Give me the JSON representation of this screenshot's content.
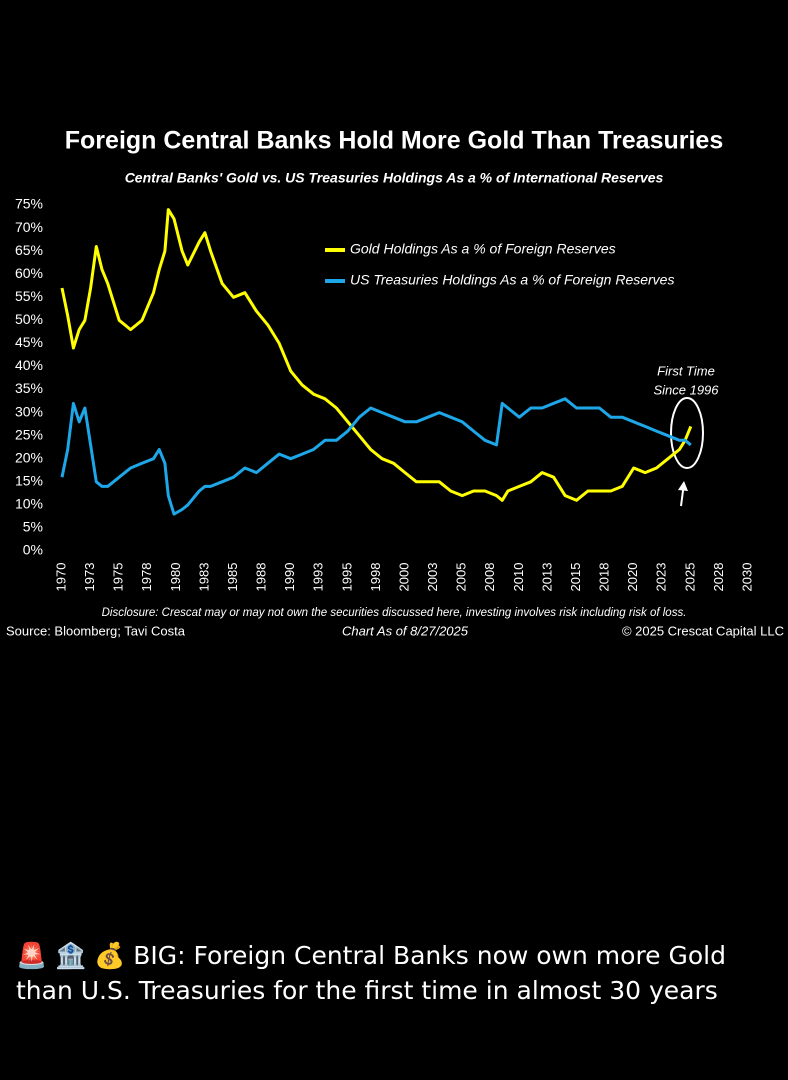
{
  "chart_data": {
    "type": "line",
    "title": "Foreign Central Banks Hold More Gold Than Treasuries",
    "subtitle": "Central Banks' Gold vs. US Treasuries Holdings As a % of International Reserves",
    "x": [
      1970,
      1970.5,
      1971,
      1971.5,
      1972,
      1972.5,
      1973,
      1973.5,
      1974,
      1975,
      1976,
      1977,
      1978,
      1978.5,
      1979,
      1979.3,
      1979.8,
      1980.5,
      1981,
      1982,
      1982.5,
      1983,
      1984,
      1985,
      1986,
      1987,
      1988,
      1989,
      1990,
      1991,
      1992,
      1993,
      1994,
      1995,
      1996,
      1997,
      1998,
      1999,
      2000,
      2001,
      2002,
      2003,
      2004,
      2005,
      2006,
      2007,
      2008,
      2008.5,
      2009,
      2010,
      2011,
      2012,
      2013,
      2014,
      2015,
      2016,
      2017,
      2018,
      2019,
      2020,
      2021,
      2022,
      2023,
      2024,
      2024.5,
      2025
    ],
    "series": [
      {
        "name": "Gold Holdings As a % of Foreign Reserves",
        "color": "#ffff00",
        "values": [
          57,
          51,
          44,
          48,
          50,
          57,
          66,
          61,
          58,
          50,
          48,
          50,
          56,
          61,
          65,
          74,
          72,
          65,
          62,
          67,
          69,
          65,
          58,
          55,
          56,
          52,
          49,
          45,
          39,
          36,
          34,
          33,
          31,
          28,
          25,
          22,
          20,
          19,
          17,
          15,
          15,
          15,
          13,
          12,
          13,
          13,
          12,
          11,
          13,
          14,
          15,
          17,
          16,
          12,
          11,
          13,
          13,
          13,
          14,
          18,
          17,
          18,
          20,
          22,
          24,
          27
        ]
      },
      {
        "name": "US Treasuries Holdings As a % of Foreign Reserves",
        "color": "#1ea7e8",
        "values": [
          16,
          22,
          32,
          28,
          31,
          23,
          15,
          14,
          14,
          16,
          18,
          19,
          20,
          22,
          19,
          12,
          8,
          9,
          10,
          13,
          14,
          14,
          15,
          16,
          18,
          17,
          19,
          21,
          20,
          21,
          22,
          24,
          24,
          26,
          29,
          31,
          30,
          29,
          28,
          28,
          29,
          30,
          29,
          28,
          26,
          24,
          23,
          32,
          31,
          29,
          31,
          31,
          32,
          33,
          31,
          31,
          31,
          29,
          29,
          28,
          27,
          26,
          25,
          24,
          24,
          23
        ]
      }
    ],
    "xlim": [
      1970,
      2030
    ],
    "xticks": [
      1970,
      {
        "value": 1972.5,
        "label": "1973"
      },
      1975,
      {
        "value": 1977.5,
        "label": "1978"
      },
      1980,
      {
        "value": 1982.5,
        "label": "1983"
      },
      1985,
      {
        "value": 1987.5,
        "label": "1988"
      },
      1990,
      {
        "value": 1992.5,
        "label": "1993"
      },
      1995,
      {
        "value": 1997.5,
        "label": "1998"
      },
      2000,
      {
        "value": 2002.5,
        "label": "2003"
      },
      2005,
      {
        "value": 2007.5,
        "label": "2008"
      },
      2010,
      {
        "value": 2012.5,
        "label": "2013"
      },
      2015,
      {
        "value": 2017.5,
        "label": "2018"
      },
      2020,
      {
        "value": 2022.5,
        "label": "2023"
      },
      2025,
      {
        "value": 2027.5,
        "label": "2028"
      },
      2030
    ],
    "ylim": [
      0,
      75
    ],
    "yticks": [
      {
        "value": 0,
        "label": "0%"
      },
      {
        "value": 5,
        "label": "5%"
      },
      {
        "value": 10,
        "label": "10%"
      },
      {
        "value": 15,
        "label": "15%"
      },
      {
        "value": 20,
        "label": "20%"
      },
      {
        "value": 25,
        "label": "25%"
      },
      {
        "value": 30,
        "label": "30%"
      },
      {
        "value": 35,
        "label": "35%"
      },
      {
        "value": 40,
        "label": "40%"
      },
      {
        "value": 45,
        "label": "45%"
      },
      {
        "value": 50,
        "label": "50%"
      },
      {
        "value": 55,
        "label": "55%"
      },
      {
        "value": 60,
        "label": "60%"
      },
      {
        "value": 65,
        "label": "65%"
      },
      {
        "value": 70,
        "label": "70%"
      },
      {
        "value": 75,
        "label": "75%"
      }
    ],
    "grid": false,
    "legend": "upper center",
    "annotation": [
      "First Time",
      "Since 1996"
    ],
    "disclosure": "Disclosure: Crescat may or may not own the securities discussed here, investing involves risk including risk of loss.",
    "source": "Source: Bloomberg; Tavi Costa",
    "date_note": "Chart As of 8/27/2025",
    "copyright": "© 2025 Crescat Capital LLC"
  },
  "post": {
    "text": "🚨 🏦 💰 BIG: Foreign Central Banks now own more Gold than U.S. Treasuries for the first time in almost 30 years"
  }
}
